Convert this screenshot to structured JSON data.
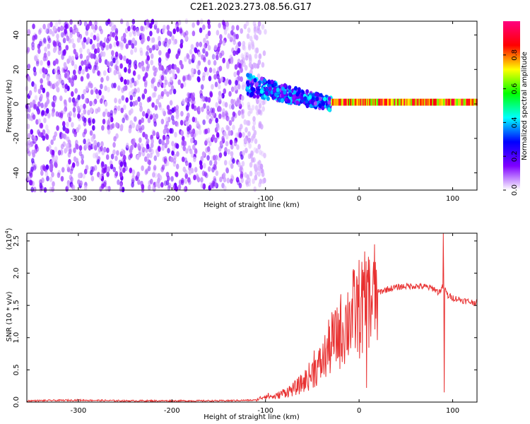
{
  "figure_title": "C2E1.2023.273.08.56.G17",
  "chart_data": [
    {
      "type": "heatmap",
      "title": "",
      "xlabel": "Height of straight line (km)",
      "ylabel": "Frequency (Hz)",
      "xlim": [
        -355,
        126
      ],
      "ylim": [
        -50,
        48
      ],
      "x_ticks": [
        -300,
        -200,
        -100,
        0,
        100
      ],
      "x_tick_labels": [
        "-300",
        "-200",
        "-100",
        "0",
        "100"
      ],
      "y_ticks": [
        -40,
        -20,
        0,
        20,
        40
      ],
      "y_tick_labels": [
        "-40",
        "-20",
        "0",
        "20",
        "40"
      ],
      "colorbar": {
        "label": "Normalized spectral amplitude",
        "range": [
          0,
          1
        ],
        "ticks": [
          0.0,
          0.2,
          0.4,
          0.6,
          0.8
        ],
        "tick_labels": [
          "0.0",
          "0.2",
          "0.4",
          "0.6",
          "0.8"
        ],
        "colors": [
          "#ffffff",
          "#7f00ff",
          "#0000ff",
          "#00ffff",
          "#00ff00",
          "#ffff00",
          "#ff0000",
          "#ff0080"
        ]
      },
      "regions": [
        {
          "x": [
            -355,
            -120
          ],
          "freq": [
            -50,
            48
          ],
          "amplitude": [
            0.0,
            0.15
          ],
          "description": "broadband scatter"
        },
        {
          "x": [
            -120,
            -30
          ],
          "freq_center_start": 11,
          "freq_center_end": 0,
          "amplitude": [
            0.1,
            0.45
          ]
        },
        {
          "x": [
            -30,
            126
          ],
          "freq": [
            0,
            2
          ],
          "amplitude": [
            0.6,
            0.95
          ]
        }
      ],
      "grid": false
    },
    {
      "type": "line",
      "title": "",
      "xlabel": "Height of straight line (km)",
      "ylabel": "SNR (10 * v/v)",
      "y_multiplier_label": "(x10",
      "y_multiplier_exp": "4",
      "xlim": [
        -355,
        126
      ],
      "ylim": [
        0,
        2.62
      ],
      "x_ticks": [
        -300,
        -200,
        -100,
        0,
        100
      ],
      "x_tick_labels": [
        "-300",
        "-200",
        "-100",
        "0",
        "100"
      ],
      "y_ticks": [
        0.0,
        0.5,
        1.0,
        1.5,
        2.0,
        2.5
      ],
      "y_tick_labels": [
        "0.0",
        "0.5",
        "1.0",
        "1.5",
        "2.0",
        "2.5"
      ],
      "line_color": "#e83030",
      "x": [
        -355,
        -300,
        -250,
        -200,
        -150,
        -110,
        -100,
        -90,
        -80,
        -70,
        -60,
        -50,
        -40,
        -30,
        -20,
        -10,
        0,
        10,
        20,
        30,
        40,
        50,
        60,
        70,
        80,
        85,
        90,
        95,
        100,
        110,
        120,
        126
      ],
      "y": [
        0.02,
        0.03,
        0.02,
        0.02,
        0.02,
        0.03,
        0.1,
        0.08,
        0.15,
        0.2,
        0.3,
        0.45,
        0.6,
        0.9,
        1.1,
        1.3,
        1.45,
        1.55,
        1.7,
        1.75,
        1.78,
        1.8,
        1.8,
        1.79,
        1.76,
        1.7,
        1.8,
        1.65,
        1.62,
        1.58,
        1.55,
        1.55
      ],
      "spikes": [
        {
          "x": 90,
          "y": 2.62
        },
        {
          "x": 91,
          "y": 0.15
        },
        {
          "x": 9,
          "y": 2.05
        },
        {
          "x": 8,
          "y": 0.22
        },
        {
          "x": -10,
          "y": 1.55
        },
        {
          "x": -25,
          "y": 1.4
        },
        {
          "x": -48,
          "y": 0.8
        }
      ],
      "grid": false
    }
  ]
}
